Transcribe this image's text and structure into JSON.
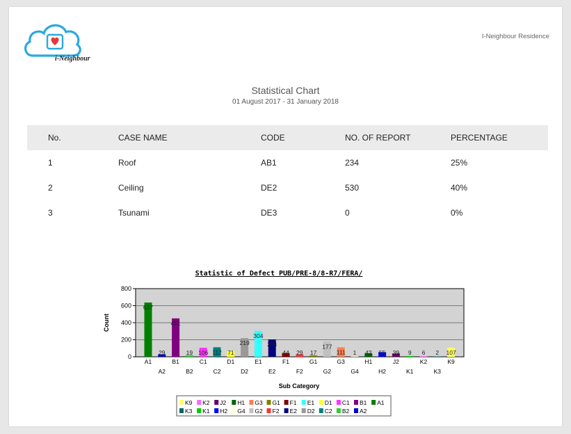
{
  "brand": {
    "logo_text": "i-Neighbour",
    "residence": "I-Neighbour Residence"
  },
  "report": {
    "title": "Statistical Chart",
    "date_range": "01 August 2017 - 31 January 2018"
  },
  "table": {
    "headers": [
      "No.",
      "CASE NAME",
      "CODE",
      "NO. OF REPORT",
      "PERCENTAGE"
    ],
    "rows": [
      [
        "1",
        "Roof",
        "AB1",
        "234",
        "25%"
      ],
      [
        "2",
        "Ceiling",
        "DE2",
        "530",
        "40%"
      ],
      [
        "3",
        "Tsunami",
        "DE3",
        "0",
        "0%"
      ]
    ]
  },
  "colors": {
    "brand": "#29a9e0",
    "heart": "#e5383b",
    "plot_bg": "#d3d3d3"
  },
  "chart_data": {
    "type": "bar",
    "title": "Statistic of Defect PUB/PRE-8/8-R7/FERA/",
    "xlabel": "Sub Category",
    "ylabel": "Count",
    "ylim": [
      0,
      800
    ],
    "yticks": [
      0,
      200,
      400,
      600,
      800
    ],
    "grid": true,
    "legend_position": "bottom",
    "categories": [
      "A1",
      "A2",
      "B1",
      "B2",
      "C1",
      "C2",
      "D1",
      "D2",
      "E1",
      "E2",
      "F1",
      "F2",
      "G1",
      "G2",
      "G3",
      "G4",
      "H1",
      "H2",
      "J2",
      "K1",
      "K2",
      "K3",
      "K9"
    ],
    "values": [
      637,
      29,
      451,
      19,
      106,
      112,
      71,
      219,
      304,
      204,
      44,
      29,
      17,
      177,
      111,
      1,
      42,
      55,
      39,
      9,
      6,
      2,
      107
    ],
    "bar_colors": [
      "#008000",
      "#0000cc",
      "#800080",
      "#33cc33",
      "#ff33ff",
      "#008080",
      "#ffff33",
      "#999999",
      "#33ffff",
      "#000080",
      "#800000",
      "#ff3333",
      "#808000",
      "#c0c0c0",
      "#ff7f50",
      "#ffffcc",
      "#006400",
      "#0000ff",
      "#660066",
      "#00cc00",
      "#ff66ff",
      "#006666",
      "#ffff66"
    ],
    "legend_rows": [
      [
        "K9",
        "K2",
        "J2",
        "H1",
        "G3",
        "G1",
        "F1",
        "E1",
        "D1",
        "C1",
        "B1",
        "A1"
      ],
      [
        "K3",
        "K1",
        "H2",
        "G4",
        "G2",
        "F2",
        "E2",
        "D2",
        "C2",
        "B2",
        "A2"
      ]
    ]
  }
}
